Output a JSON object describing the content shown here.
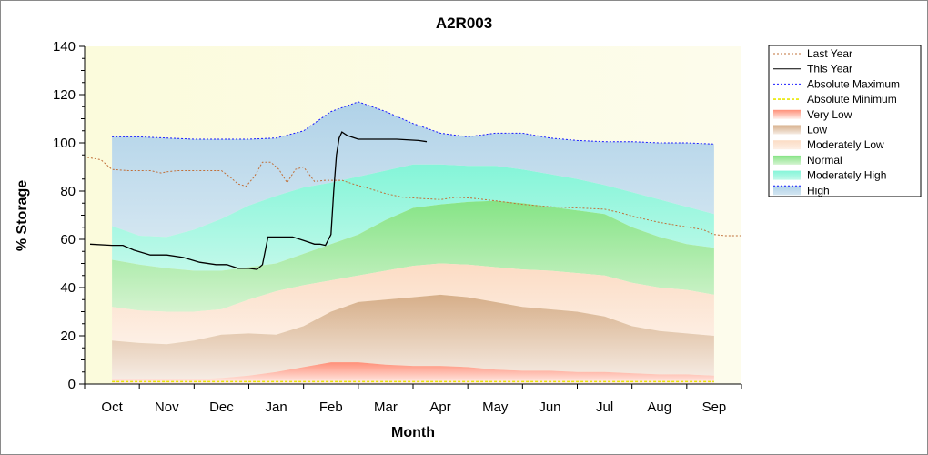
{
  "chart_data": {
    "type": "area",
    "title": "A2R003",
    "xlabel": "Month",
    "ylabel": "% Storage",
    "ylim": [
      0,
      140
    ],
    "yticks": [
      0,
      20,
      40,
      60,
      80,
      100,
      120,
      140
    ],
    "xlim": [
      -0.5,
      11.5
    ],
    "categories": [
      "Oct",
      "Nov",
      "Dec",
      "Jan",
      "Feb",
      "Mar",
      "Apr",
      "May",
      "Jun",
      "Jul",
      "Aug",
      "Sep"
    ],
    "legend_position": "right",
    "legend": [
      {
        "name": "Last Year",
        "kind": "line",
        "color": "#c0703a",
        "dash": "2,2"
      },
      {
        "name": "This Year",
        "kind": "line",
        "color": "#000000",
        "dash": ""
      },
      {
        "name": "Absolute Maximum",
        "kind": "line",
        "color": "#1a1aff",
        "dash": "2,2"
      },
      {
        "name": "Absolute Minimum",
        "kind": "line",
        "color": "#e8e800",
        "dash": "3,2"
      },
      {
        "name": "Very Low",
        "kind": "fill",
        "color": "#ff8a70"
      },
      {
        "name": "Low",
        "kind": "fill",
        "color": "#d9b38c"
      },
      {
        "name": "Moderately Low",
        "kind": "fill",
        "color": "#fde0c8"
      },
      {
        "name": "Normal",
        "kind": "fill",
        "color": "#8fe88f"
      },
      {
        "name": "Moderately High",
        "kind": "fill",
        "color": "#6ff5d0"
      },
      {
        "name": "High",
        "kind": "fill",
        "color": "#a9cfe6"
      }
    ],
    "band_x": [
      0,
      0.5,
      1,
      1.5,
      2,
      2.5,
      3,
      3.5,
      4,
      4.5,
      5,
      5.5,
      6,
      6.5,
      7,
      7.5,
      8,
      8.5,
      9,
      9.5,
      10,
      10.5,
      11
    ],
    "bands": {
      "absolute_minimum": [
        1,
        1,
        1,
        1,
        1,
        1,
        1,
        1,
        1,
        1,
        1,
        1,
        1,
        1,
        1,
        1,
        1,
        1,
        1,
        1,
        1,
        1,
        1
      ],
      "very_low_top": [
        2,
        2,
        2,
        2,
        2.5,
        3.5,
        5,
        7,
        9,
        9,
        8,
        7.5,
        7.5,
        7,
        6,
        5.5,
        5.5,
        5,
        5,
        4.5,
        4,
        4,
        3.5
      ],
      "low_top": [
        18,
        17,
        16.5,
        18,
        20.5,
        21,
        20.5,
        24,
        30,
        34,
        35,
        36,
        37,
        36,
        34,
        32,
        31,
        30,
        28,
        24,
        22,
        21,
        20
      ],
      "moderately_low_top": [
        32,
        30.5,
        30,
        30,
        31,
        35,
        38.5,
        41,
        43,
        45,
        47,
        49,
        50,
        49.5,
        48.5,
        47.5,
        47,
        46,
        45,
        42,
        40,
        39,
        37
      ],
      "normal_top": [
        51.5,
        49.5,
        48,
        47,
        47,
        48.5,
        50,
        54,
        58,
        62,
        68,
        73,
        74.5,
        75.5,
        76,
        75,
        73.5,
        72,
        70.5,
        65,
        61,
        58,
        56.5
      ],
      "moderately_high_top": [
        65.5,
        61.5,
        61,
        64,
        68.5,
        74,
        78,
        81.5,
        83.5,
        86,
        88.5,
        91,
        91,
        90.5,
        90.5,
        89,
        87,
        85,
        82.5,
        79.5,
        76.5,
        73.5,
        70.5
      ],
      "high_top": [
        102.5,
        102.5,
        102,
        101.5,
        101.5,
        101.5,
        102,
        105,
        113,
        117,
        113,
        108,
        104,
        102.5,
        104,
        104,
        102,
        101,
        100.5,
        100.5,
        100,
        100,
        99.5
      ]
    },
    "series": [
      {
        "name": "Last Year",
        "color": "#c0703a",
        "x": [
          -0.45,
          -0.2,
          0,
          0.3,
          0.5,
          0.7,
          0.9,
          1,
          1.2,
          1.5,
          1.8,
          2,
          2.15,
          2.3,
          2.45,
          2.6,
          2.75,
          2.9,
          3.05,
          3.2,
          3.35,
          3.5,
          3.7,
          3.9,
          4,
          4.2,
          4.4,
          4.7,
          5,
          5.3,
          5.6,
          6,
          6.3,
          6.6,
          7,
          7.5,
          8,
          8.5,
          9,
          9.3,
          9.6,
          10,
          10.4,
          10.8,
          11,
          11.2,
          11.5
        ],
        "y": [
          94,
          93,
          89,
          88.5,
          88.5,
          88.5,
          87.5,
          88,
          88.5,
          88.5,
          88.5,
          88.5,
          86,
          83,
          82,
          86,
          92,
          92,
          89,
          83.5,
          89,
          90,
          84,
          84.5,
          84.5,
          84.5,
          83,
          81,
          79,
          77.5,
          77,
          76.5,
          77.5,
          77,
          76,
          74.5,
          73.5,
          73,
          72.5,
          71,
          69,
          67,
          65.5,
          64,
          62,
          61.5,
          61.5
        ]
      },
      {
        "name": "This Year",
        "color": "#000000",
        "x": [
          -0.4,
          0,
          0.2,
          0.4,
          0.7,
          1,
          1.3,
          1.6,
          1.9,
          2.1,
          2.3,
          2.5,
          2.65,
          2.75,
          2.85,
          3,
          3.3,
          3.5,
          3.7,
          3.8,
          3.9,
          4,
          4.05,
          4.1,
          4.15,
          4.2,
          4.3,
          4.5,
          4.8,
          5.2,
          5.6,
          5.75
        ],
        "y": [
          58,
          57.5,
          57.5,
          55.5,
          53.5,
          53.5,
          52.5,
          50.5,
          49.5,
          49.5,
          48,
          48,
          47.5,
          49.5,
          61,
          61,
          61,
          59.5,
          58,
          58,
          57.5,
          62,
          80,
          95,
          102,
          104.5,
          103,
          101.5,
          101.5,
          101.5,
          101,
          100.5
        ]
      }
    ]
  }
}
